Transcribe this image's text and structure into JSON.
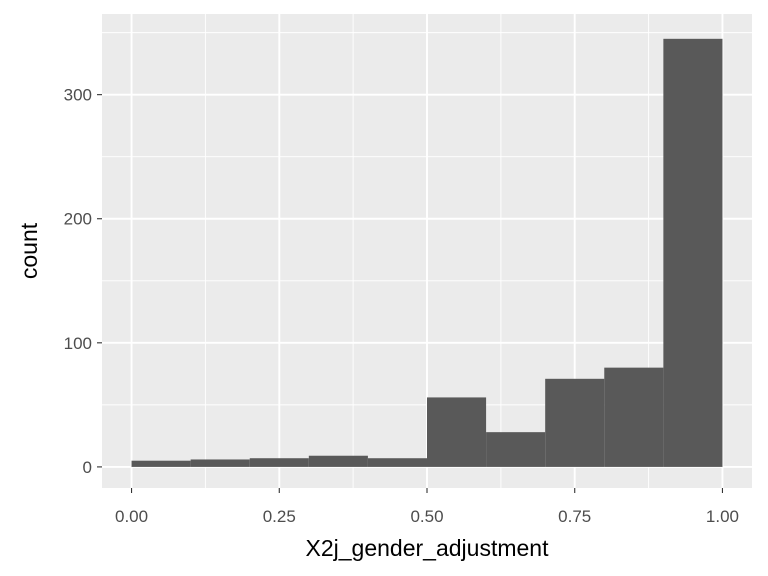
{
  "chart_data": {
    "type": "bar",
    "title": "",
    "xlabel": "X2j_gender_adjustment",
    "ylabel": "count",
    "xlim": [
      -0.05,
      1.05
    ],
    "ylim": [
      -17,
      365
    ],
    "x_ticks": [
      0.0,
      0.25,
      0.5,
      0.75,
      1.0
    ],
    "x_tick_labels": [
      "0.00",
      "0.25",
      "0.50",
      "0.75",
      "1.00"
    ],
    "y_ticks": [
      0,
      100,
      200,
      300
    ],
    "y_tick_labels": [
      "0",
      "100",
      "200",
      "300"
    ],
    "grid": true,
    "bins": [
      {
        "x0": 0.0,
        "x1": 0.1,
        "count": 5
      },
      {
        "x0": 0.1,
        "x1": 0.2,
        "count": 6
      },
      {
        "x0": 0.2,
        "x1": 0.3,
        "count": 7
      },
      {
        "x0": 0.3,
        "x1": 0.4,
        "count": 9
      },
      {
        "x0": 0.4,
        "x1": 0.5,
        "count": 7
      },
      {
        "x0": 0.5,
        "x1": 0.6,
        "count": 56
      },
      {
        "x0": 0.6,
        "x1": 0.7,
        "count": 28
      },
      {
        "x0": 0.7,
        "x1": 0.8,
        "count": 71
      },
      {
        "x0": 0.8,
        "x1": 0.9,
        "count": 80
      },
      {
        "x0": 0.9,
        "x1": 1.0,
        "count": 345
      }
    ],
    "colors": {
      "panel_background": "#EBEBEB",
      "grid_major": "#FFFFFF",
      "bar_fill": "#595959",
      "tick_text": "#4D4D4D"
    }
  }
}
